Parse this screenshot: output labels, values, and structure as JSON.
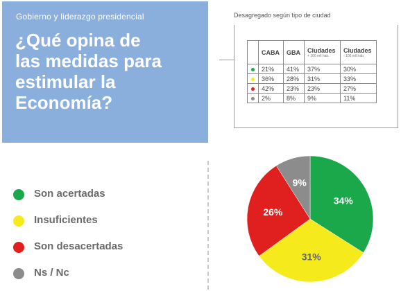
{
  "header": {
    "kicker": "Gobierno y liderazgo presidencial",
    "question": "¿Qué opina de\nlas medidas para\nestimular la\nEconomía?"
  },
  "table": {
    "title": "Desagregado según  tipo de ciudad",
    "columns": [
      {
        "label": "CABA",
        "sub": ""
      },
      {
        "label": "GBA",
        "sub": ""
      },
      {
        "label": "Ciudades",
        "sub": "+ 100 mil hab."
      },
      {
        "label": "Ciudades",
        "sub": "- 100 mil hab."
      }
    ],
    "rows": [
      {
        "color": "#1aa84a",
        "values": [
          "21%",
          "41%",
          "37%",
          "30%"
        ]
      },
      {
        "color": "#f5ea1c",
        "values": [
          "36%",
          "28%",
          "31%",
          "33%"
        ]
      },
      {
        "color": "#e0201f",
        "values": [
          "42%",
          "23%",
          "23%",
          "27%"
        ]
      },
      {
        "color": "#8c8c8c",
        "values": [
          "2%",
          "8%",
          "9%",
          "11%"
        ]
      }
    ]
  },
  "chart_data": {
    "type": "pie",
    "categories": [
      "Son acertadas",
      "Insuficientes",
      "Son desacertadas",
      "Ns / Nc"
    ],
    "values": [
      34,
      31,
      26,
      9
    ],
    "labels": [
      "34%",
      "31%",
      "26%",
      "9%"
    ],
    "colors": [
      "#1aa84a",
      "#f5ea1c",
      "#e0201f",
      "#8c8c8c"
    ],
    "label_colors": [
      "#ffffff",
      "#666666",
      "#ffffff",
      "#ffffff"
    ],
    "legend": "left"
  }
}
